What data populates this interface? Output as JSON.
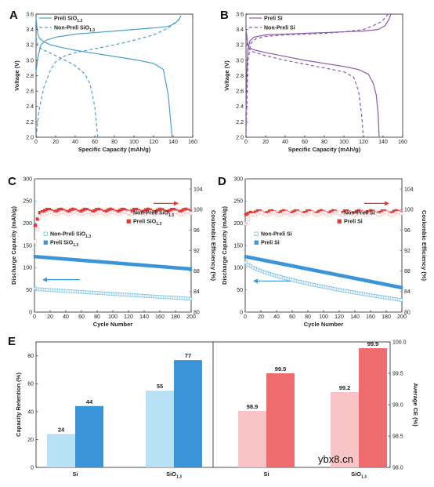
{
  "watermark": "ybx8.cn",
  "colors": {
    "blue": "#4a9fd0",
    "blue_dark": "#3a95d8",
    "blue_light": "#b9e1f5",
    "purple": "#8a5aae",
    "red": "#e53935",
    "red_mid": "#ee6b6e",
    "red_light": "#f8c4c6"
  },
  "chart_data": [
    {
      "panel": "A",
      "type": "line",
      "xlabel": "Specific Capacity (mAh/g)",
      "ylabel": "Voltage (V)",
      "xlim": [
        0,
        160
      ],
      "ylim": [
        2.0,
        3.6
      ],
      "xticks": [
        "0",
        "20",
        "40",
        "60",
        "80",
        "100",
        "120",
        "140",
        "160"
      ],
      "yticks": [
        "2.0",
        "2.2",
        "2.4",
        "2.6",
        "2.8",
        "3.0",
        "3.2",
        "3.4",
        "3.6"
      ],
      "legend": "top-left",
      "series": [
        {
          "name": "Preli SiO1.3",
          "style": "solid",
          "color": "#4a9fd0",
          "x": [
            0,
            1,
            2,
            4,
            8,
            15,
            25,
            40,
            60,
            80,
            100,
            120,
            130,
            135,
            139
          ],
          "y": [
            3.55,
            3.42,
            3.33,
            3.28,
            3.24,
            3.2,
            3.17,
            3.13,
            3.09,
            3.05,
            3.01,
            2.96,
            2.88,
            2.55,
            2.0
          ]
        },
        {
          "name": "Preli SiO1.3 charge",
          "style": "solid",
          "color": "#4a9fd0",
          "x": [
            0,
            2,
            5,
            10,
            20,
            30,
            40,
            60,
            80,
            100,
            120,
            135,
            142,
            146,
            148
          ],
          "y": [
            2.85,
            3.05,
            3.2,
            3.26,
            3.3,
            3.32,
            3.34,
            3.36,
            3.38,
            3.4,
            3.42,
            3.44,
            3.48,
            3.53,
            3.58
          ]
        },
        {
          "name": "Non-Preli SiO1.3",
          "style": "dashed",
          "color": "#4a9fd0",
          "x": [
            0,
            2,
            5,
            10,
            20,
            30,
            40,
            50,
            55,
            60,
            63
          ],
          "y": [
            3.3,
            3.18,
            3.15,
            3.12,
            3.06,
            3.0,
            2.93,
            2.82,
            2.7,
            2.4,
            2.0
          ]
        },
        {
          "name": "Non-Preli SiO1.3 charge",
          "style": "dashed",
          "color": "#4a9fd0",
          "x": [
            0,
            3,
            8,
            15,
            20,
            30,
            40,
            60,
            80,
            100,
            120,
            135,
            140,
            145,
            148
          ],
          "y": [
            2.0,
            2.35,
            2.65,
            2.88,
            2.98,
            3.06,
            3.1,
            3.15,
            3.2,
            3.26,
            3.33,
            3.42,
            3.47,
            3.52,
            3.58
          ]
        }
      ],
      "legend_entries": [
        {
          "label": "Preli SiO",
          "sub": "1.3",
          "style": "solid"
        },
        {
          "label": "Non-Preli SiO",
          "sub": "1.3",
          "style": "dashed"
        }
      ]
    },
    {
      "panel": "B",
      "type": "line",
      "xlabel": "Specific Capacity (mAh/g)",
      "ylabel": "Voltage (V)",
      "xlim": [
        0,
        160
      ],
      "ylim": [
        2.0,
        3.6
      ],
      "xticks": [
        "0",
        "20",
        "40",
        "60",
        "80",
        "100",
        "120",
        "140",
        "160"
      ],
      "yticks": [
        "2.0",
        "2.2",
        "2.4",
        "2.6",
        "2.8",
        "3.0",
        "3.2",
        "3.4",
        "3.6"
      ],
      "legend": "top-left",
      "series": [
        {
          "name": "Preli Si",
          "style": "solid",
          "color": "#8a5aae",
          "x": [
            0,
            2,
            5,
            10,
            20,
            40,
            60,
            80,
            100,
            115,
            125,
            130,
            133,
            135,
            136
          ],
          "y": [
            3.4,
            3.2,
            3.15,
            3.13,
            3.1,
            3.05,
            3.0,
            2.96,
            2.92,
            2.88,
            2.82,
            2.7,
            2.55,
            2.3,
            2.0
          ]
        },
        {
          "name": "Preli Si charge",
          "style": "solid",
          "color": "#8a5aae",
          "x": [
            0,
            1,
            2,
            4,
            8,
            20,
            40,
            60,
            80,
            100,
            120,
            135,
            142,
            146,
            148
          ],
          "y": [
            2.3,
            2.9,
            3.15,
            3.25,
            3.3,
            3.33,
            3.34,
            3.35,
            3.36,
            3.37,
            3.38,
            3.4,
            3.45,
            3.53,
            3.6
          ]
        },
        {
          "name": "Non-Preli Si",
          "style": "dashed",
          "color": "#8a5aae",
          "x": [
            0,
            2,
            5,
            10,
            20,
            40,
            60,
            80,
            100,
            110,
            115,
            118,
            120
          ],
          "y": [
            3.3,
            3.17,
            3.12,
            3.1,
            3.06,
            3.0,
            2.95,
            2.9,
            2.85,
            2.78,
            2.6,
            2.3,
            2.0
          ]
        },
        {
          "name": "Non-Preli Si charge",
          "style": "dashed",
          "color": "#8a5aae",
          "x": [
            0,
            2,
            5,
            10,
            20,
            40,
            60,
            80,
            100,
            120,
            130,
            138,
            142,
            145
          ],
          "y": [
            2.0,
            3.0,
            3.22,
            3.28,
            3.31,
            3.33,
            3.34,
            3.35,
            3.37,
            3.4,
            3.45,
            3.5,
            3.55,
            3.6
          ]
        }
      ],
      "legend_entries": [
        {
          "label": "Preli Si",
          "sub": "",
          "style": "solid"
        },
        {
          "label": "Non-Preli Si",
          "sub": "",
          "style": "dashed"
        }
      ]
    },
    {
      "panel": "C",
      "type": "scatter",
      "xlabel": "Cycle Number",
      "ylabel": "Discharge Capacity (mAh/g)",
      "ylabel2": "Coulombic Efficiency (%)",
      "xlim": [
        0,
        200
      ],
      "ylim": [
        0,
        300
      ],
      "ylim2": [
        80,
        106
      ],
      "xticks": [
        "0",
        "20",
        "40",
        "60",
        "80",
        "100",
        "120",
        "140",
        "160",
        "180",
        "200"
      ],
      "yticks": [
        "0",
        "50",
        "100",
        "150",
        "200",
        "250",
        "300"
      ],
      "yticks2": [
        "80",
        "84",
        "88",
        "92",
        "96",
        "100",
        "104"
      ],
      "capacity_series": [
        {
          "name": "Preli SiO1.3",
          "filled": true,
          "start": 125,
          "end": 97,
          "first": 125
        },
        {
          "name": "Non-Preli SiO1.3",
          "filled": false,
          "start": 52,
          "end": 30,
          "first": 60
        }
      ],
      "ce_series": [
        {
          "name": "Preli SiO1.3",
          "filled": true,
          "level": 99.8,
          "first": 96.5
        },
        {
          "name": "Non-Preli SiO1.3",
          "filled": false,
          "level": 99.3,
          "first": 93
        }
      ],
      "legend_capacity": [
        {
          "label": "Non-Preli SiO",
          "sub": "1.3",
          "filled": false
        },
        {
          "label": "Preli SiO",
          "sub": "1.3",
          "filled": true
        }
      ],
      "legend_ce": [
        {
          "label": "Non-Preli SiO",
          "sub": "1.3",
          "filled": false
        },
        {
          "label": "Preli SiO",
          "sub": "1.3",
          "filled": true
        }
      ]
    },
    {
      "panel": "D",
      "type": "scatter",
      "xlabel": "Cycle Number",
      "ylabel": "Discharge Capacity (mAh/g)",
      "ylabel2": "Coulombic Efficiency (%)",
      "xlim": [
        0,
        200
      ],
      "ylim": [
        0,
        300
      ],
      "ylim2": [
        80,
        106
      ],
      "xticks": [
        "0",
        "20",
        "40",
        "60",
        "80",
        "100",
        "120",
        "140",
        "160",
        "180",
        "200"
      ],
      "yticks": [
        "0",
        "50",
        "100",
        "150",
        "200",
        "250",
        "300"
      ],
      "yticks2": [
        "80",
        "84",
        "88",
        "92",
        "96",
        "100",
        "104"
      ],
      "capacity_series": [
        {
          "name": "Preli Si",
          "filled": true,
          "start": 125,
          "end": 55,
          "first": 125
        },
        {
          "name": "Non-Preli Si",
          "filled": false,
          "start": 115,
          "end": 27,
          "first": 115
        }
      ],
      "ce_series": [
        {
          "name": "Preli Si",
          "filled": true,
          "level": 99.5,
          "first": 99
        },
        {
          "name": "Non-Preli Si",
          "filled": false,
          "level": 99.2,
          "first": 97
        }
      ],
      "legend_capacity": [
        {
          "label": "Non-Preli Si",
          "sub": "",
          "filled": false
        },
        {
          "label": "Preli Si",
          "sub": "",
          "filled": true
        }
      ],
      "legend_ce": [
        {
          "label": "Non-Preli Si",
          "sub": "",
          "filled": false
        },
        {
          "label": "Preli Si",
          "sub": "",
          "filled": true
        }
      ]
    },
    {
      "panel": "E",
      "type": "bar",
      "ylabel": "Capacity Retention (%)",
      "ylabel2": "Average CE (%)",
      "ylim": [
        0,
        90
      ],
      "yticks": [
        "0",
        "20",
        "40",
        "60",
        "80"
      ],
      "ylim2": [
        98.0,
        100.0
      ],
      "yticks2": [
        "98.0",
        "98.5",
        "99.0",
        "99.5",
        "100.0"
      ],
      "groups_left": [
        {
          "category": "Si",
          "sub": "",
          "values": [
            24,
            44
          ],
          "labels": [
            "24",
            "44"
          ]
        },
        {
          "category": "SiO",
          "sub": "1.3",
          "values": [
            55,
            77
          ],
          "labels": [
            "55",
            "77"
          ]
        }
      ],
      "groups_right": [
        {
          "category": "Si",
          "sub": "",
          "values": [
            98.9,
            99.5
          ],
          "labels": [
            "98.9",
            "99.5"
          ]
        },
        {
          "category": "SiO",
          "sub": "1.3",
          "values": [
            99.2,
            99.9
          ],
          "labels": [
            "99.2",
            "99.9"
          ]
        }
      ]
    }
  ]
}
